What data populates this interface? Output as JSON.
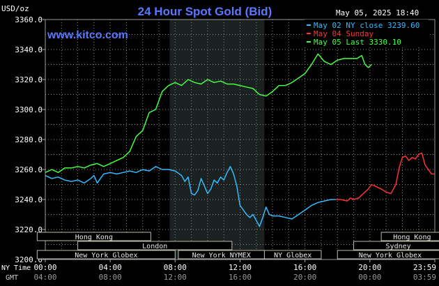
{
  "header": {
    "ylabel": "USD/oz",
    "title": "24 Hour Spot Gold (Bid)",
    "timestamp": "May 05, 2025 18:40",
    "website": "www.kitco.com"
  },
  "legend": [
    {
      "text": "May 02 NY close 3239.60",
      "color": "#33bbff"
    },
    {
      "text": "May 04 Sunday",
      "color": "#ff3333"
    },
    {
      "text": "May 05 Last 3330.10",
      "color": "#44ff44"
    }
  ],
  "markets": [
    {
      "label": "Hong Kong",
      "start": -0.5,
      "end": 6.5
    },
    {
      "label": "London",
      "start": 2.0,
      "end": 11.5
    },
    {
      "label": "New York Globex",
      "start": -0.5,
      "end": 8.0
    },
    {
      "label": "New York NYMEX",
      "start": 8.2,
      "end": 13.5
    },
    {
      "label": "NY Globex",
      "start": 13.5,
      "end": 17.0
    },
    {
      "label": "Hong Kong",
      "start": 20.7,
      "end": 24.5
    },
    {
      "label": "Sydney",
      "start": 19.0,
      "end": 24.5
    },
    {
      "label": "New York Globex",
      "start": 18.0,
      "end": 24.5
    }
  ],
  "time_axis": {
    "ny_label": "NY Time",
    "gmt_label": "GMT",
    "ny_ticks": [
      "00:00",
      "04:00",
      "08:00",
      "12:00",
      "16:00",
      "20:00",
      "23:59"
    ],
    "gmt_ticks": [
      "04:00",
      "08:00",
      "12:00",
      "16:00",
      "20:00",
      "00:00",
      "03:59"
    ]
  },
  "chart_data": {
    "type": "line",
    "xlabel": "NY Time",
    "ylabel": "USD/oz",
    "xlim": [
      0,
      24
    ],
    "ylim": [
      3200,
      3360
    ],
    "yticks": [
      "3200.0",
      "3220.0",
      "3240.0",
      "3260.0",
      "3280.0",
      "3300.0",
      "3320.0",
      "3340.0",
      "3360.0"
    ],
    "ytick_values": [
      3200,
      3220,
      3240,
      3260,
      3280,
      3300,
      3320,
      3340,
      3360
    ],
    "grid": true,
    "nymex_shade": [
      7.66,
      13.5
    ],
    "series": [
      {
        "name": "May 02 NY close 3239.60",
        "color": "#33bbff",
        "points": [
          [
            0.0,
            3256
          ],
          [
            0.4,
            3254
          ],
          [
            0.8,
            3255
          ],
          [
            1.2,
            3253
          ],
          [
            1.6,
            3252
          ],
          [
            2.0,
            3253
          ],
          [
            2.4,
            3251
          ],
          [
            2.8,
            3254
          ],
          [
            3.0,
            3256
          ],
          [
            3.2,
            3251
          ],
          [
            3.6,
            3257
          ],
          [
            4.0,
            3258
          ],
          [
            4.4,
            3257
          ],
          [
            4.8,
            3258
          ],
          [
            5.2,
            3259
          ],
          [
            5.6,
            3258
          ],
          [
            6.0,
            3260
          ],
          [
            6.4,
            3259
          ],
          [
            6.8,
            3262
          ],
          [
            7.2,
            3260
          ],
          [
            7.6,
            3260
          ],
          [
            8.0,
            3259
          ],
          [
            8.4,
            3256
          ],
          [
            8.6,
            3252
          ],
          [
            8.8,
            3255
          ],
          [
            9.0,
            3244
          ],
          [
            9.2,
            3243
          ],
          [
            9.4,
            3246
          ],
          [
            9.6,
            3254
          ],
          [
            9.8,
            3249
          ],
          [
            10.0,
            3244
          ],
          [
            10.2,
            3247
          ],
          [
            10.4,
            3253
          ],
          [
            10.6,
            3251
          ],
          [
            10.8,
            3255
          ],
          [
            11.0,
            3253
          ],
          [
            11.2,
            3258
          ],
          [
            11.4,
            3262
          ],
          [
            11.6,
            3257
          ],
          [
            11.8,
            3249
          ],
          [
            12.0,
            3236
          ],
          [
            12.2,
            3233
          ],
          [
            12.4,
            3230
          ],
          [
            12.6,
            3228
          ],
          [
            12.8,
            3230
          ],
          [
            13.0,
            3226
          ],
          [
            13.2,
            3222
          ],
          [
            13.4,
            3228
          ],
          [
            13.6,
            3235
          ],
          [
            13.8,
            3230
          ],
          [
            14.0,
            3229
          ],
          [
            14.4,
            3229
          ],
          [
            14.8,
            3228
          ],
          [
            15.2,
            3227
          ],
          [
            15.6,
            3230
          ],
          [
            16.0,
            3233
          ],
          [
            16.4,
            3236
          ],
          [
            16.8,
            3238
          ],
          [
            17.2,
            3239
          ],
          [
            17.6,
            3240
          ],
          [
            17.9,
            3240
          ]
        ]
      },
      {
        "name": "May 04 Sunday",
        "color": "#ff3333",
        "points": [
          [
            17.9,
            3240
          ],
          [
            18.2,
            3240
          ],
          [
            18.6,
            3239
          ],
          [
            18.8,
            3241
          ],
          [
            19.0,
            3240
          ],
          [
            19.3,
            3241
          ],
          [
            19.6,
            3244
          ],
          [
            19.9,
            3247
          ],
          [
            20.1,
            3250
          ],
          [
            20.3,
            3249
          ],
          [
            20.5,
            3248
          ],
          [
            20.7,
            3247
          ],
          [
            21.0,
            3245
          ],
          [
            21.3,
            3244
          ],
          [
            21.6,
            3250
          ],
          [
            21.8,
            3261
          ],
          [
            22.0,
            3268
          ],
          [
            22.2,
            3269
          ],
          [
            22.4,
            3266
          ],
          [
            22.6,
            3268
          ],
          [
            22.8,
            3267
          ],
          [
            23.0,
            3270
          ],
          [
            23.2,
            3271
          ],
          [
            23.4,
            3263
          ],
          [
            23.6,
            3260
          ],
          [
            23.8,
            3257
          ],
          [
            24.0,
            3257
          ]
        ]
      },
      {
        "name": "May 05 Last 3330.10",
        "color": "#44ff44",
        "points": [
          [
            0.0,
            3258
          ],
          [
            0.4,
            3260
          ],
          [
            0.8,
            3258
          ],
          [
            1.2,
            3261
          ],
          [
            1.6,
            3261
          ],
          [
            2.0,
            3262
          ],
          [
            2.4,
            3261
          ],
          [
            2.8,
            3263
          ],
          [
            3.2,
            3264
          ],
          [
            3.6,
            3262
          ],
          [
            4.0,
            3264
          ],
          [
            4.4,
            3266
          ],
          [
            4.8,
            3268
          ],
          [
            5.2,
            3272
          ],
          [
            5.6,
            3282
          ],
          [
            6.0,
            3286
          ],
          [
            6.4,
            3298
          ],
          [
            6.8,
            3300
          ],
          [
            7.2,
            3312
          ],
          [
            7.6,
            3316
          ],
          [
            8.0,
            3318
          ],
          [
            8.4,
            3316
          ],
          [
            8.8,
            3320
          ],
          [
            9.2,
            3318
          ],
          [
            9.6,
            3317
          ],
          [
            10.0,
            3320
          ],
          [
            10.4,
            3318
          ],
          [
            10.8,
            3319
          ],
          [
            11.2,
            3317
          ],
          [
            11.6,
            3317
          ],
          [
            12.0,
            3316
          ],
          [
            12.4,
            3315
          ],
          [
            12.8,
            3314
          ],
          [
            13.2,
            3310
          ],
          [
            13.6,
            3309
          ],
          [
            14.0,
            3312
          ],
          [
            14.4,
            3316
          ],
          [
            14.8,
            3316
          ],
          [
            15.2,
            3318
          ],
          [
            15.6,
            3321
          ],
          [
            16.0,
            3324
          ],
          [
            16.4,
            3330
          ],
          [
            16.8,
            3337
          ],
          [
            17.2,
            3332
          ],
          [
            17.6,
            3330
          ],
          [
            18.0,
            3333
          ],
          [
            18.4,
            3334
          ],
          [
            18.8,
            3334
          ],
          [
            19.2,
            3334
          ],
          [
            19.5,
            3336
          ],
          [
            19.7,
            3330
          ],
          [
            19.9,
            3328
          ],
          [
            20.1,
            3330
          ]
        ]
      }
    ]
  }
}
